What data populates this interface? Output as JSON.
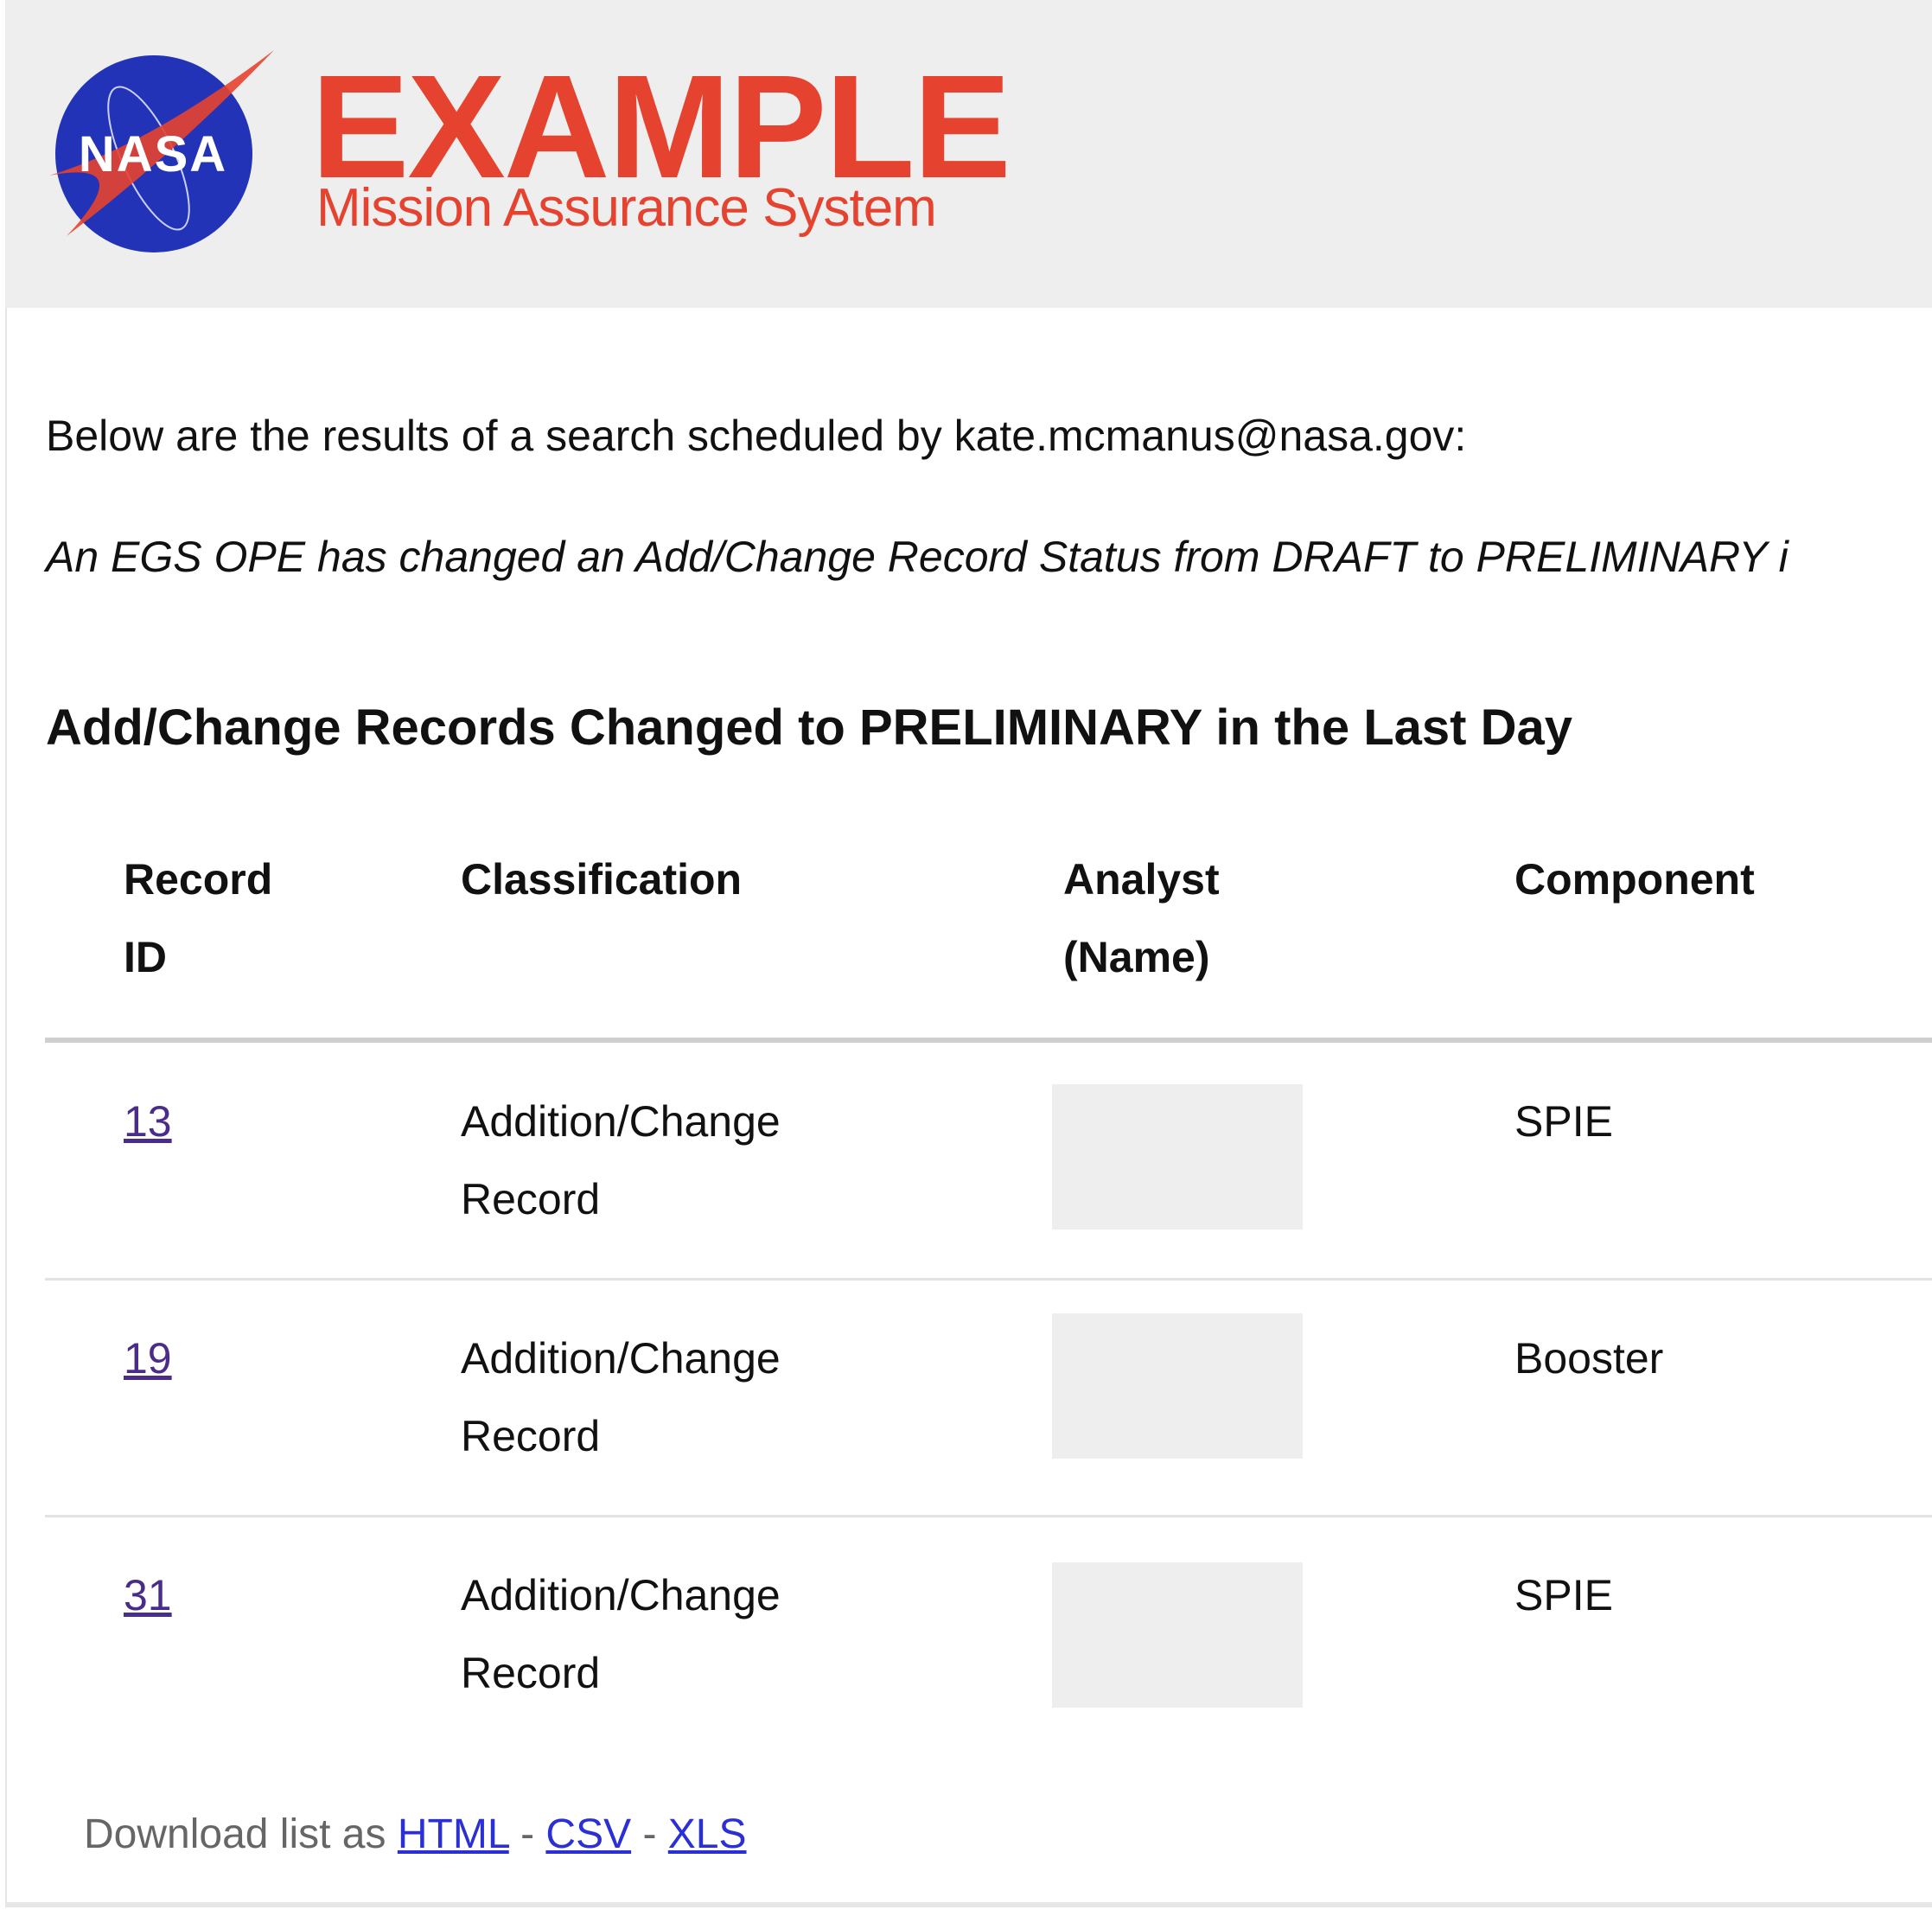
{
  "header": {
    "logo_text": "NASA",
    "brand_title": "EXAMPLE",
    "brand_subtitle": "Mission Assurance System",
    "brand_color": "#e5432f",
    "logo_color": "#2233b8"
  },
  "intro": "Below are the results of a search scheduled by kate.mcmanus@nasa.gov:",
  "note": "An EGS OPE has changed an Add/Change Record Status from DRAFT to PRELIMINARY i",
  "section_title": "Add/Change Records Changed to PRELIMINARY in the Last Day",
  "table": {
    "headers": [
      {
        "line1": "Record",
        "line2": "ID"
      },
      {
        "line1": "Classification",
        "line2": ""
      },
      {
        "line1": "Analyst",
        "line2": "(Name)"
      },
      {
        "line1": "Component",
        "line2": ""
      }
    ],
    "rows": [
      {
        "id": "13",
        "class1": "Addition/Change",
        "class2": "Record",
        "analyst": "",
        "component": "SPIE"
      },
      {
        "id": "19",
        "class1": "Addition/Change",
        "class2": "Record",
        "analyst": "",
        "component": "Booster"
      },
      {
        "id": "31",
        "class1": "Addition/Change",
        "class2": "Record",
        "analyst": "",
        "component": "SPIE"
      }
    ]
  },
  "download": {
    "label": "Download list as",
    "sep": "-",
    "links": [
      "HTML",
      "CSV",
      "XLS"
    ]
  }
}
